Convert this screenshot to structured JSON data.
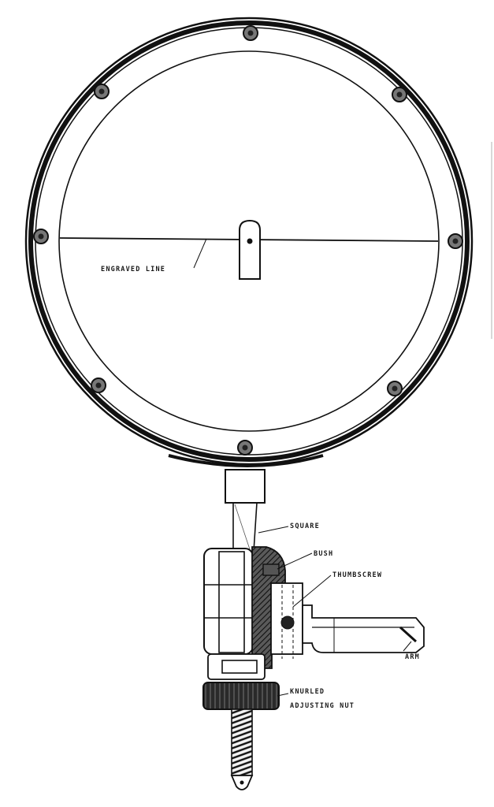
{
  "labels": {
    "engraved_line": "ENGRAVED LINE",
    "square": "SQUARE",
    "bush": "BUSH",
    "thumbscrew": "THUMBSCREW",
    "arm": "ARM",
    "knurled": "KNURLED",
    "adjusting_nut": "ADJUSTING NUT"
  },
  "colors": {
    "ink": "#111111",
    "hatch": "#222222",
    "paper": "#ffffff"
  }
}
